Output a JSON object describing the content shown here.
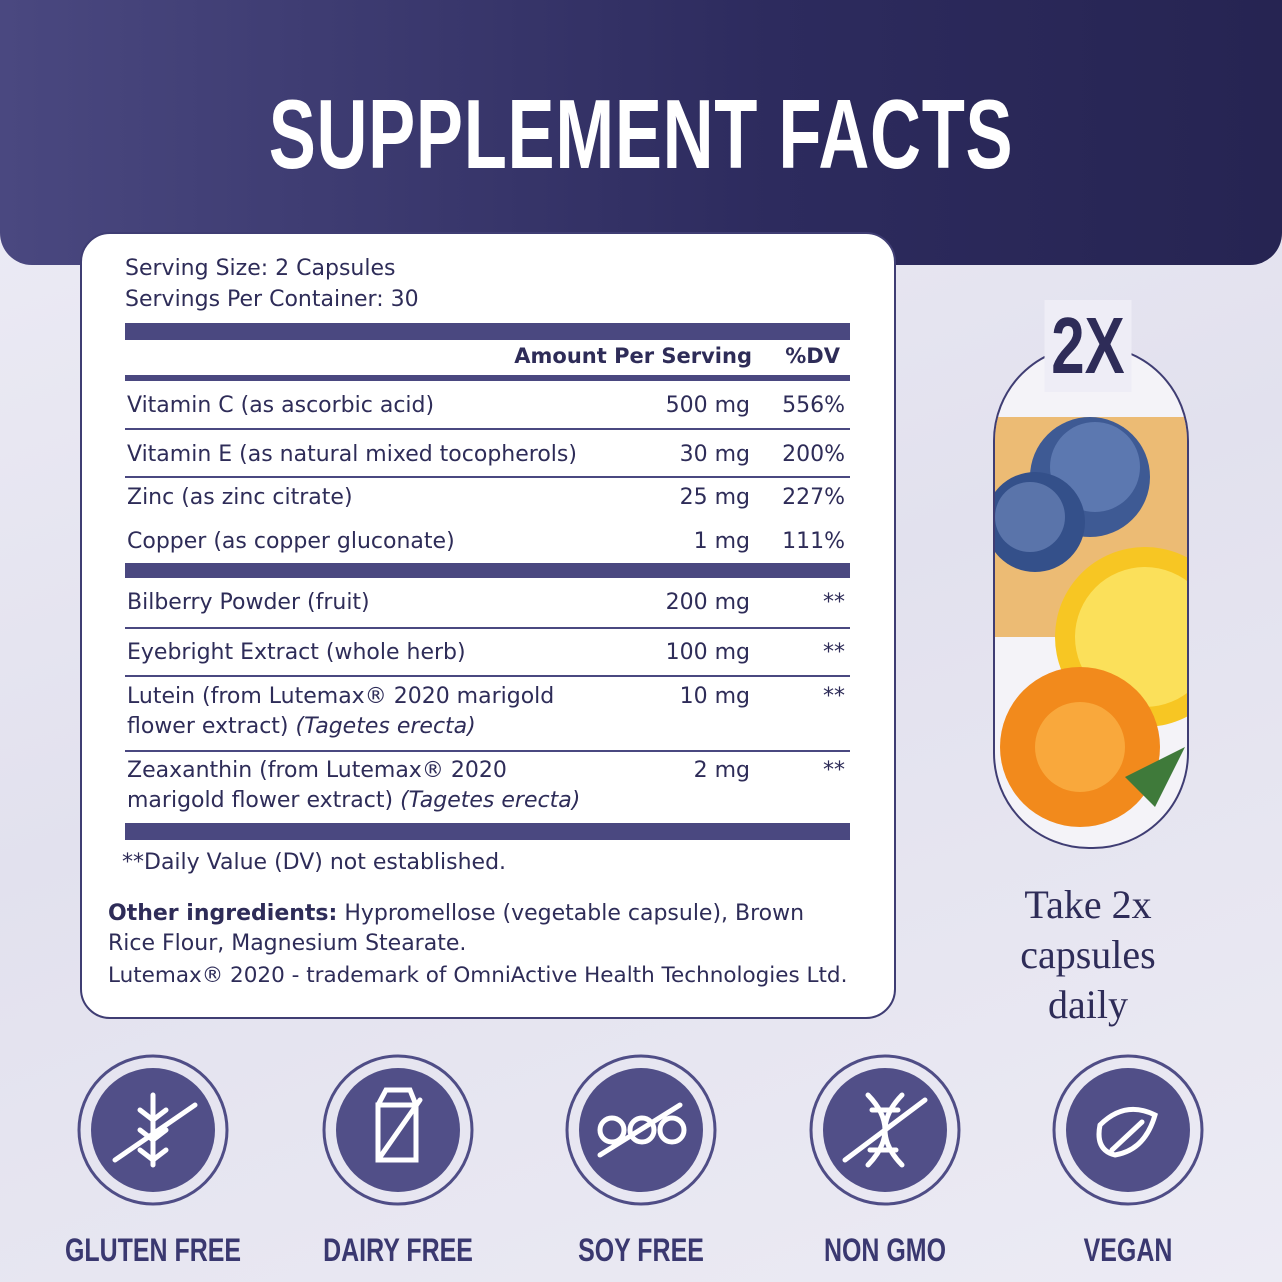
{
  "header": {
    "title": "SUPPLEMENT FACTS"
  },
  "facts": {
    "serving_size": "Serving Size: 2 Capsules",
    "servings_per_container": "Servings Per Container: 30",
    "columns": [
      "Amount Per Serving",
      "%DV"
    ],
    "sections": [
      {
        "rows": [
          {
            "name": "Vitamin C (as ascorbic acid)",
            "amount": "500 mg",
            "dv": "556%"
          },
          {
            "name": "Vitamin E (as natural mixed tocopherols)",
            "amount": "30 mg",
            "dv": "200%"
          },
          {
            "name": "Zinc (as zinc citrate)",
            "amount": "25 mg",
            "dv": "227%"
          },
          {
            "name": "Copper (as copper gluconate)",
            "amount": "1 mg",
            "dv": "111%"
          }
        ]
      },
      {
        "rows": [
          {
            "name": "Bilberry Powder (fruit)",
            "amount": "200 mg",
            "dv": "**"
          },
          {
            "name": "Eyebright Extract (whole herb)",
            "amount": "100 mg",
            "dv": "**"
          },
          {
            "name": "Lutein (from Lutemax® 2020 marigold flower extract)",
            "latin": "(Tagetes erecta)",
            "amount": "10 mg",
            "dv": "**"
          },
          {
            "name": "Zeaxanthin (from Lutemax® 2020 marigold flower extract)",
            "latin": "(Tagetes erecta)",
            "amount": "2 mg",
            "dv": "**"
          }
        ]
      }
    ],
    "footnote": "**Daily Value (DV) not established.",
    "other_ingredients": {
      "label": "Other ingredients:",
      "text": "Hypromellose (vegetable capsule), Brown Rice Flour, Magnesium Stearate."
    },
    "trademark": "Lutemax® 2020 - trademark of OmniActive Health Technologies Ltd."
  },
  "dosage": {
    "badge": "2X",
    "text": "Take 2x capsules daily"
  },
  "badges": [
    "GLUTEN FREE",
    "DAIRY FREE",
    "SOY FREE",
    "NON GMO",
    "VEGAN"
  ]
}
